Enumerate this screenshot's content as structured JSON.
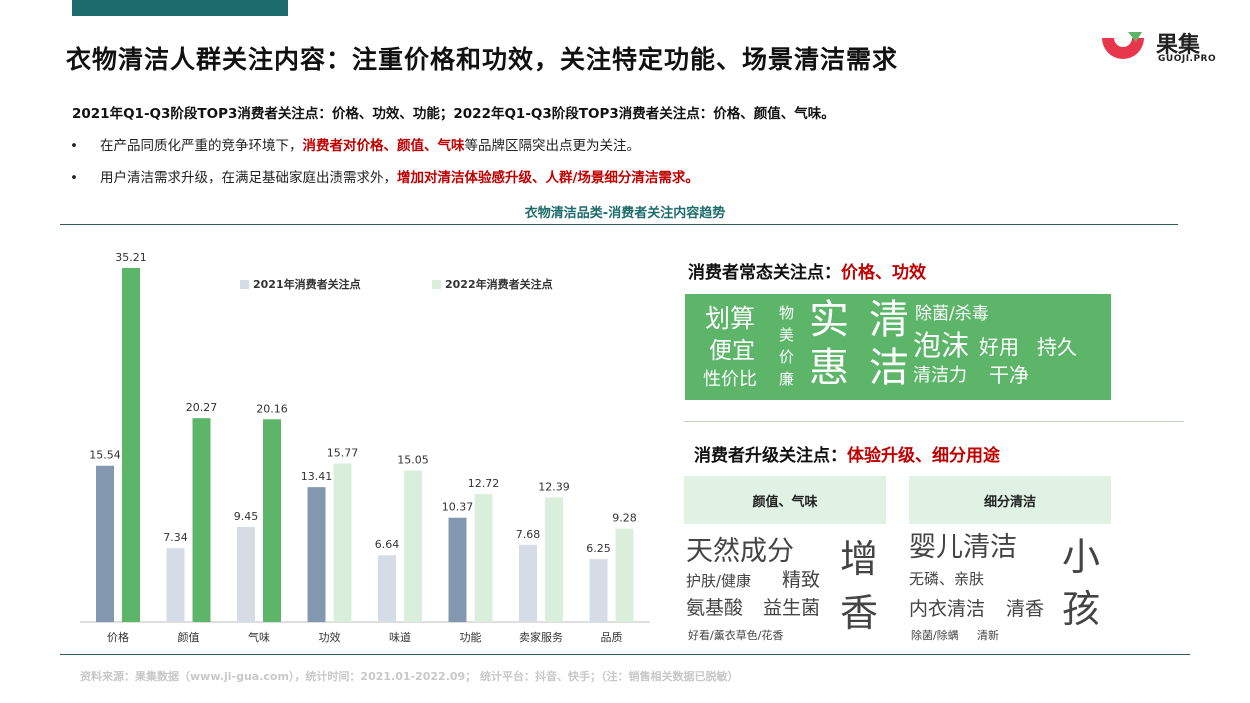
{
  "header": {
    "title": "衣物清洁人群关注内容：注重价格和功效，关注特定功能、场景清洁需求",
    "subtitle": "2021年Q1-Q3阶段TOP3消费者关注点：价格、功效、功能；2022年Q1-Q3阶段TOP3消费者关注点：价格、颜值、气味。",
    "bullet1_pre": "在产品同质化严重的竞争环境下，",
    "bullet1_red": "消费者对价格、颜值、气味",
    "bullet1_post": "等品牌区隔突出点更为关注。",
    "bullet2_pre": "用户清洁需求升级，在满足基础家庭出渍需求外，",
    "bullet2_red": "增加对清洁体验感升级、人群/场景细分清洁需求。",
    "bullet_mark": "•"
  },
  "logo": {
    "name": "果集",
    "sub": "GUOJI.PRO"
  },
  "colors": {
    "accent": "#1e6b6b",
    "red": "#c00000",
    "green": "#5db56a",
    "bar2021": "#8497b0",
    "bar2021_light": "#d6dce5",
    "bar2022": "#5db56a",
    "bar2022_light": "#d9efdc"
  },
  "chart_data": {
    "type": "bar",
    "title": "衣物清洁品类-消费者关注内容趋势",
    "categories": [
      "价格",
      "颜值",
      "气味",
      "功效",
      "味道",
      "功能",
      "卖家服务",
      "品质"
    ],
    "series": [
      {
        "name": "2021年消费者关注点",
        "values": [
          15.54,
          7.34,
          9.45,
          13.41,
          6.64,
          10.37,
          7.68,
          6.25
        ]
      },
      {
        "name": "2022年消费者关注点",
        "values": [
          35.21,
          20.27,
          20.16,
          15.77,
          15.05,
          12.72,
          12.39,
          9.28
        ]
      }
    ],
    "highlighted": [
      {
        "series": 0,
        "indices": [
          0,
          3,
          5
        ]
      },
      {
        "series": 1,
        "indices": [
          0,
          1,
          2
        ]
      }
    ],
    "ylim": [
      0,
      36
    ],
    "legend": "top",
    "grid": false
  },
  "panel1": {
    "title_pre": "消费者常态关注点：",
    "title_red": "价格、功效",
    "words": [
      "划算",
      "便宜",
      "性价比",
      "物",
      "美",
      "价",
      "廉",
      "实",
      "惠",
      "清",
      "洁",
      "除菌/杀毒",
      "泡沫",
      "好用",
      "持久",
      "清洁力",
      "干净"
    ]
  },
  "panel2": {
    "title_pre": "消费者升级关注点：",
    "title_red": "体验升级、细分用途",
    "tag1": "颜值、气味",
    "tag2": "细分清洁",
    "cloud1": [
      "天然成分",
      "护肤/健康",
      "精致",
      "氨基酸",
      "益生菌",
      "好看/薰衣草色/花香",
      "增",
      "香"
    ],
    "cloud2": [
      "婴儿清洁",
      "无磷、亲肤",
      "内衣清洁",
      "清香",
      "除菌/除螨",
      "清新",
      "小",
      "孩"
    ]
  },
  "footer": {
    "source": "资料来源：果集数据（www.ji-gua.com），统计时间：2021.01-2022.09；    统计平台：抖音、快手；（注：销售相关数据已脱敏）"
  }
}
